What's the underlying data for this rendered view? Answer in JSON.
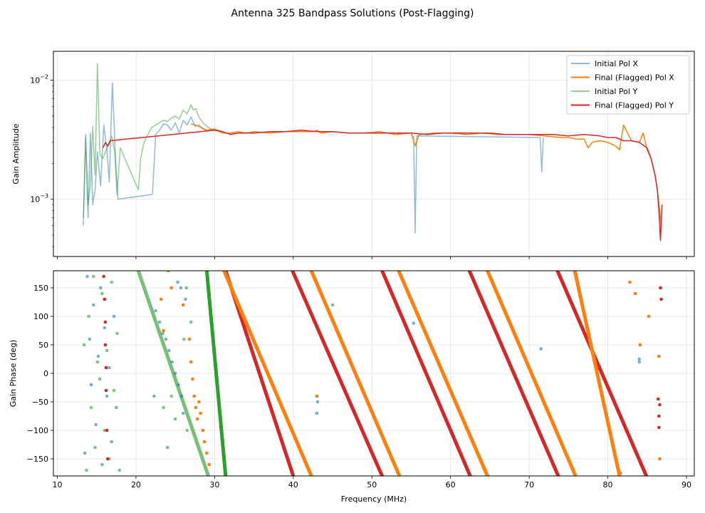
{
  "figure": {
    "title": "Antenna 325 Bandpass Solutions (Post-Flagging)"
  },
  "chart_data": [
    {
      "type": "line",
      "panel": "amplitude",
      "ylabel": "Gain Amplitude",
      "xlabel": "",
      "yscale": "log",
      "xlim": [
        9.5,
        91
      ],
      "ylim": [
        0.00033,
        0.0175
      ],
      "xticks": [
        10,
        20,
        30,
        40,
        50,
        60,
        70,
        80,
        90
      ],
      "yticks": [
        {
          "value": 0.001,
          "label": "10^-3"
        },
        {
          "value": 0.01,
          "label": "10^-2"
        }
      ],
      "grid": true,
      "legend": "top-right",
      "series": [
        {
          "name": "Initial Pol X",
          "color": "#1f77b4",
          "alpha": 0.5,
          "x": [
            13.3,
            13.6,
            13.9,
            14.2,
            14.5,
            14.8,
            15.1,
            15.5,
            15.9,
            16.3,
            16.6,
            17.0,
            17.4,
            17.7,
            22.1,
            22.5,
            23.0,
            23.5,
            24.0,
            24.5,
            25.0,
            25.5,
            26.0,
            26.5,
            27.0,
            27.5,
            28.0,
            28.5,
            29.0
          ],
          "y": [
            0.0006,
            0.0035,
            0.0007,
            0.0036,
            0.0009,
            0.0012,
            0.0025,
            0.0013,
            0.0042,
            0.0026,
            0.0014,
            0.0095,
            0.0022,
            0.001,
            0.0011,
            0.0035,
            0.0038,
            0.0043,
            0.0042,
            0.0038,
            0.0044,
            0.0036,
            0.0046,
            0.0042,
            0.0049,
            0.0041,
            0.0042,
            0.0039,
            0.0038
          ]
        },
        {
          "name": "Initial Pol X spikes",
          "legend": false,
          "color": "#1f77b4",
          "alpha": 0.5,
          "x": [
            55.3,
            55.5,
            55.7,
            71.4,
            71.6,
            71.8
          ],
          "y": [
            0.0034,
            0.00052,
            0.0034,
            0.0033,
            0.0017,
            0.0033
          ]
        },
        {
          "name": "Final (Flagged) Pol X",
          "color": "#ff7f0e",
          "alpha": 1,
          "x": [
            27.0,
            28.0,
            29.0,
            30.0,
            31.0,
            32.0,
            33.0,
            34.0,
            35.0,
            37.0,
            39.0,
            41.0,
            42.5,
            43.0,
            43.5,
            45.0,
            47.0,
            49.0,
            51.0,
            53.0,
            55.0,
            55.5,
            56.0,
            58.0,
            60.0,
            62.0,
            64.0,
            66.0,
            68.0,
            70.0,
            72.0,
            74.0,
            75.0,
            76.0,
            77.0,
            77.5,
            78.0,
            79.0,
            80.0,
            81.0,
            81.5,
            82.0,
            83.0,
            84.0,
            84.5,
            85.0,
            85.5,
            86.0,
            86.3,
            86.6,
            86.8
          ],
          "y": [
            0.0043,
            0.0041,
            0.0038,
            0.0039,
            0.0036,
            0.0036,
            0.0037,
            0.0036,
            0.0037,
            0.0036,
            0.0037,
            0.0037,
            0.0037,
            0.0038,
            0.0036,
            0.0037,
            0.0036,
            0.0036,
            0.0037,
            0.0035,
            0.0036,
            0.0028,
            0.0035,
            0.0036,
            0.0036,
            0.0035,
            0.0036,
            0.0035,
            0.0035,
            0.0035,
            0.0034,
            0.0033,
            0.0033,
            0.0032,
            0.0032,
            0.0027,
            0.003,
            0.0031,
            0.003,
            0.0028,
            0.0026,
            0.0042,
            0.0031,
            0.003,
            0.0036,
            0.0026,
            0.0022,
            0.0016,
            0.0012,
            0.0008,
            0.0006
          ]
        },
        {
          "name": "Initial Pol Y",
          "color": "#2ca02c",
          "alpha": 0.5,
          "x": [
            13.3,
            13.6,
            13.9,
            14.2,
            14.5,
            14.8,
            15.1,
            15.4,
            15.8,
            16.2,
            16.6,
            16.9,
            17.3,
            17.6,
            18.0,
            20.3,
            20.6,
            20.9,
            21.2,
            21.6,
            22.0,
            22.5,
            23.0,
            23.5,
            24.0,
            24.5,
            25.0,
            25.5,
            26.0,
            26.5,
            27.0,
            27.3,
            27.6,
            28.0,
            28.5,
            29.0,
            29.5,
            30.0,
            30.5,
            31.0
          ],
          "y": [
            0.0007,
            0.0033,
            0.0009,
            0.0013,
            0.0041,
            0.0016,
            0.0138,
            0.0024,
            0.0022,
            0.0026,
            0.0029,
            0.0034,
            0.0025,
            0.0011,
            0.0027,
            0.0012,
            0.0022,
            0.0028,
            0.0032,
            0.0036,
            0.004,
            0.0042,
            0.0044,
            0.0046,
            0.0045,
            0.0048,
            0.005,
            0.0047,
            0.0056,
            0.0052,
            0.0062,
            0.0056,
            0.0058,
            0.0049,
            0.0044,
            0.0041,
            0.0039,
            0.0038,
            0.0038,
            0.0037
          ]
        },
        {
          "name": "Final (Flagged) Pol Y",
          "color": "#d62728",
          "alpha": 1,
          "x": [
            15.8,
            16.1,
            16.4,
            16.7,
            30.0,
            31.0,
            32.0,
            33.0,
            34.0,
            35.0,
            37.0,
            39.0,
            41.0,
            43.0,
            45.0,
            47.0,
            49.0,
            51.0,
            53.0,
            55.0,
            57.0,
            59.0,
            61.0,
            63.0,
            65.0,
            67.0,
            69.0,
            71.0,
            73.0,
            75.0,
            77.0,
            79.0,
            80.0,
            81.0,
            82.0,
            83.0,
            84.0,
            85.0,
            85.5,
            86.0,
            86.3,
            86.5,
            86.7,
            86.9
          ],
          "y": [
            0.0027,
            0.003,
            0.0028,
            0.0031,
            0.0038,
            0.0037,
            0.0035,
            0.0036,
            0.0036,
            0.0036,
            0.0037,
            0.0037,
            0.0038,
            0.0037,
            0.0037,
            0.0036,
            0.0036,
            0.0036,
            0.0036,
            0.0036,
            0.0035,
            0.0036,
            0.0036,
            0.0036,
            0.0036,
            0.0035,
            0.0035,
            0.0035,
            0.0035,
            0.0034,
            0.0035,
            0.0034,
            0.0033,
            0.0033,
            0.0031,
            0.0031,
            0.003,
            0.0027,
            0.0022,
            0.0016,
            0.0012,
            0.0008,
            0.00045,
            0.0009
          ]
        }
      ]
    },
    {
      "type": "scatter",
      "panel": "phase",
      "xlabel": "Frequency (MHz)",
      "ylabel": "Gain Phase (deg)",
      "xlim": [
        9.5,
        91
      ],
      "ylim": [
        -180,
        180
      ],
      "xticks": [
        10,
        20,
        30,
        40,
        50,
        60,
        70,
        80,
        90
      ],
      "yticks": [
        -150,
        -100,
        -50,
        0,
        50,
        100,
        150
      ],
      "grid": true,
      "phase_tracks": [
        {
          "series": "Initial Pol Y",
          "color": "#2ca02c",
          "alpha": 0.65,
          "x": [
            20.3,
            29.2
          ]
        },
        {
          "series": "Initial Pol Y",
          "color": "#2ca02c",
          "alpha": 1.0,
          "x": [
            29.0,
            31.4
          ]
        },
        {
          "series": "Final (Flagged) Pol Y",
          "color": "#d62728",
          "alpha": 1.0,
          "x": [
            31.4,
            40.0
          ]
        },
        {
          "series": "Final (Flagged) Pol X",
          "color": "#ff7f0e",
          "alpha": 1.0,
          "x": [
            31.2,
            42.3
          ]
        },
        {
          "series": "Final (Flagged) Pol X",
          "color": "#ff7f0e",
          "alpha": 1.0,
          "x": [
            42.3,
            53.5
          ]
        },
        {
          "series": "Final (Flagged) Pol Y",
          "color": "#d62728",
          "alpha": 1.0,
          "x": [
            39.9,
            51.3
          ]
        },
        {
          "series": "Final (Flagged) Pol Y",
          "color": "#d62728",
          "alpha": 1.0,
          "x": [
            51.3,
            62.5
          ]
        },
        {
          "series": "Final (Flagged) Pol X",
          "color": "#ff7f0e",
          "alpha": 1.0,
          "x": [
            53.4,
            64.7
          ]
        },
        {
          "series": "Final (Flagged) Pol X",
          "color": "#ff7f0e",
          "alpha": 1.0,
          "x": [
            64.7,
            75.9
          ]
        },
        {
          "series": "Final (Flagged) Pol Y",
          "color": "#d62728",
          "alpha": 1.0,
          "x": [
            62.4,
            73.7
          ]
        },
        {
          "series": "Final (Flagged) Pol Y",
          "color": "#d62728",
          "alpha": 1.0,
          "x": [
            73.6,
            84.9
          ]
        },
        {
          "series": "Final (Flagged) Pol X",
          "color": "#ff7f0e",
          "alpha": 1.0,
          "x": [
            75.8,
            81.5
          ]
        }
      ],
      "scatter_groups": [
        {
          "series": "Initial Pol X",
          "color": "#1f77b4",
          "alpha": 0.6,
          "points": [
            [
              13.5,
              -140
            ],
            [
              13.8,
              170
            ],
            [
              14.1,
              60
            ],
            [
              14.3,
              -20
            ],
            [
              14.6,
              120
            ],
            [
              14.9,
              -90
            ],
            [
              15.2,
              30
            ],
            [
              15.5,
              150
            ],
            [
              15.7,
              -160
            ],
            [
              16.0,
              80
            ],
            [
              16.3,
              -40
            ],
            [
              16.6,
              10
            ],
            [
              16.9,
              -120
            ],
            [
              17.2,
              100
            ],
            [
              17.5,
              -60
            ],
            [
              22.5,
              110
            ],
            [
              23.0,
              90
            ],
            [
              23.4,
              70
            ],
            [
              23.8,
              60
            ],
            [
              24.2,
              40
            ],
            [
              24.6,
              20
            ],
            [
              25.0,
              0
            ],
            [
              25.4,
              -20
            ],
            [
              25.8,
              -40
            ],
            [
              22.3,
              -40
            ],
            [
              24.0,
              -130
            ],
            [
              25.3,
              160
            ],
            [
              25.7,
              150
            ],
            [
              26.0,
              -70
            ],
            [
              26.3,
              130
            ],
            [
              55.3,
              88
            ],
            [
              43.0,
              -70
            ],
            [
              43.1,
              -50
            ],
            [
              45.0,
              120
            ],
            [
              71.5,
              43
            ],
            [
              84.0,
              20
            ],
            [
              84.0,
              25
            ]
          ]
        },
        {
          "series": "Initial Pol Y",
          "color": "#2ca02c",
          "alpha": 0.6,
          "points": [
            [
              13.4,
              50
            ],
            [
              13.7,
              -170
            ],
            [
              14.0,
              100
            ],
            [
              14.3,
              -60
            ],
            [
              14.6,
              170
            ],
            [
              14.8,
              -130
            ],
            [
              15.1,
              20
            ],
            [
              15.4,
              -10
            ],
            [
              15.7,
              140
            ],
            [
              16.0,
              -100
            ],
            [
              16.3,
              40
            ],
            [
              16.6,
              -150
            ],
            [
              16.9,
              160
            ],
            [
              17.2,
              -30
            ],
            [
              17.6,
              70
            ],
            [
              17.9,
              -170
            ],
            [
              24.5,
              -40
            ],
            [
              25.0,
              -80
            ],
            [
              26.1,
              60
            ],
            [
              26.5,
              -100
            ],
            [
              27.0,
              90
            ],
            [
              26.4,
              150
            ],
            [
              23.5,
              -60
            ]
          ]
        },
        {
          "series": "Final (Flagged) Pol Y",
          "color": "#d62728",
          "alpha": 1.0,
          "points": [
            [
              15.9,
              170
            ],
            [
              16.0,
              130
            ],
            [
              16.1,
              90
            ],
            [
              16.1,
              50
            ],
            [
              16.2,
              10
            ],
            [
              16.2,
              -30
            ],
            [
              16.3,
              -100
            ],
            [
              16.4,
              -150
            ],
            [
              86.4,
              -45
            ],
            [
              86.5,
              -75
            ],
            [
              86.5,
              -95
            ],
            [
              86.6,
              -55
            ],
            [
              86.7,
              150
            ],
            [
              86.8,
              130
            ]
          ]
        },
        {
          "series": "Final (Flagged) Pol X",
          "color": "#ff7f0e",
          "alpha": 1.0,
          "points": [
            [
              23.2,
              130
            ],
            [
              24.1,
              180
            ],
            [
              24.5,
              150
            ],
            [
              26.0,
              120
            ],
            [
              26.8,
              60
            ],
            [
              27.0,
              20
            ],
            [
              27.2,
              -10
            ],
            [
              27.4,
              -40
            ],
            [
              27.6,
              -60
            ],
            [
              27.8,
              -80
            ],
            [
              28.0,
              -50
            ],
            [
              28.2,
              -70
            ],
            [
              28.5,
              -100
            ],
            [
              28.7,
              -120
            ],
            [
              29.0,
              -140
            ],
            [
              29.3,
              -160
            ],
            [
              23.5,
              75
            ],
            [
              43.0,
              -40
            ],
            [
              84.1,
              50
            ],
            [
              85.2,
              100
            ],
            [
              86.5,
              30
            ],
            [
              86.6,
              -150
            ],
            [
              81.6,
              -175
            ],
            [
              82.8,
              160
            ],
            [
              83.5,
              140
            ]
          ]
        }
      ],
      "legend_entries": [
        "Initial Pol X",
        "Final (Flagged) Pol X",
        "Initial Pol Y",
        "Final (Flagged) Pol Y"
      ]
    }
  ]
}
